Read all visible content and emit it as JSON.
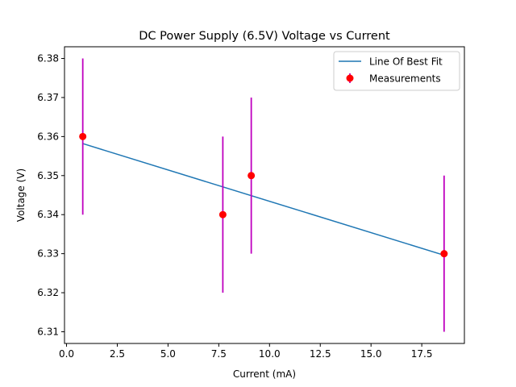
{
  "chart_data": {
    "type": "scatter",
    "title": "DC Power Supply (6.5V) Voltage vs Current",
    "xlabel": "Current (mA)",
    "ylabel": "Voltage (V)",
    "xlim": [
      -0.1,
      19.6
    ],
    "ylim": [
      6.307,
      6.383
    ],
    "x_ticks": [
      0.0,
      2.5,
      5.0,
      7.5,
      10.0,
      12.5,
      15.0,
      17.5
    ],
    "x_tick_labels": [
      "0.0",
      "2.5",
      "5.0",
      "7.5",
      "10.0",
      "12.5",
      "15.0",
      "17.5"
    ],
    "y_ticks": [
      6.31,
      6.32,
      6.33,
      6.34,
      6.35,
      6.36,
      6.37,
      6.38
    ],
    "y_tick_labels": [
      "6.31",
      "6.32",
      "6.33",
      "6.34",
      "6.35",
      "6.36",
      "6.37",
      "6.38"
    ],
    "grid": false,
    "legend_position": "top-right",
    "series": [
      {
        "name": "Measurements",
        "kind": "errorbar",
        "color": "#ff0000",
        "errorbar_color": "#bf00bf",
        "x": [
          0.8,
          7.7,
          9.1,
          18.6
        ],
        "y": [
          6.36,
          6.34,
          6.35,
          6.33
        ],
        "yerr": [
          0.02,
          0.02,
          0.02,
          0.02
        ]
      },
      {
        "name": "Line Of Best Fit",
        "kind": "line",
        "color": "#1f77b4",
        "x": [
          0.8,
          18.6
        ],
        "y": [
          6.3582,
          6.3296
        ]
      }
    ]
  }
}
